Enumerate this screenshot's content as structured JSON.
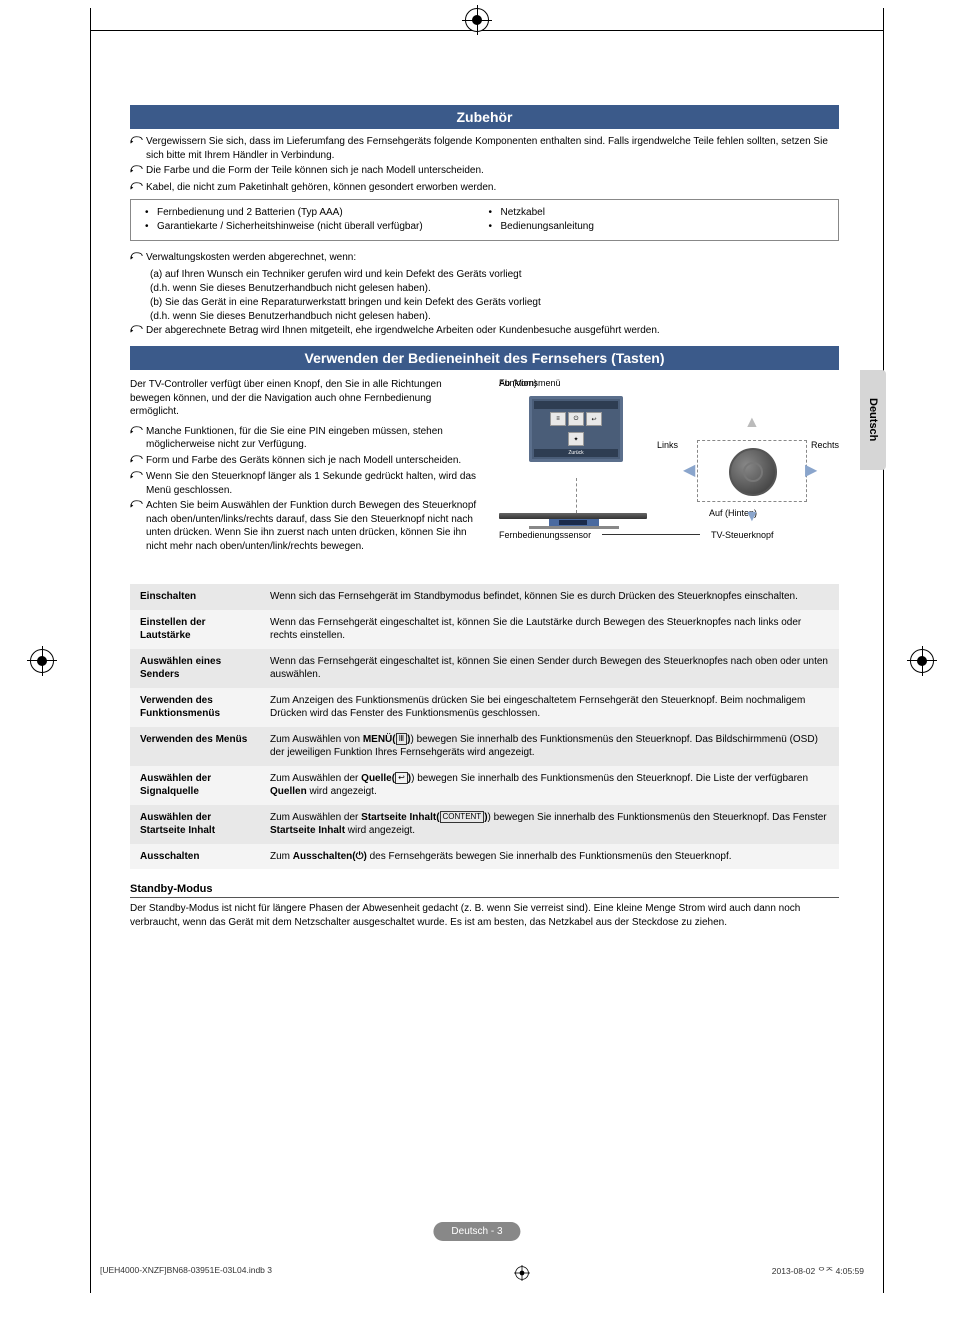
{
  "language_tab": "Deutsch",
  "sections": {
    "s1_title": "Zubehör",
    "s2_title": "Verwenden der Bedieneinheit des Fernsehers (Tasten)"
  },
  "accessories_notes": {
    "n1": "Vergewissern Sie sich, dass im Lieferumfang des Fernsehgeräts folgende Komponenten enthalten sind. Falls irgendwelche Teile fehlen sollten, setzen Sie sich bitte mit Ihrem Händler in Verbindung.",
    "n2": "Die Farbe und die Form der Teile können sich je nach Modell unterscheiden.",
    "n3": "Kabel, die nicht zum Paketinhalt gehören, können gesondert erworben werden."
  },
  "accessories_items": {
    "left1": "Fernbedienung und 2 Batterien (Typ AAA)",
    "left2": "Garantiekarte / Sicherheitshinweise (nicht überall verfügbar)",
    "right1": "Netzkabel",
    "right2": "Bedienungsanleitung"
  },
  "admin_costs": {
    "intro": "Verwaltungskosten werden abgerechnet, wenn:",
    "a": "(a) auf Ihren Wunsch ein Techniker gerufen wird und kein Defekt des Geräts vorliegt",
    "a_sub": "(d.h. wenn Sie dieses Benutzerhandbuch nicht gelesen haben).",
    "b": "(b) Sie das Gerät in eine Reparaturwerkstatt bringen und kein Defekt des Geräts vorliegt",
    "b_sub": "(d.h. wenn Sie dieses Benutzerhandbuch nicht gelesen haben).",
    "outro": "Der abgerechnete Betrag wird Ihnen mitgeteilt, ehe irgendwelche Arbeiten oder Kundenbesuche ausgeführt werden."
  },
  "controller_intro": "Der TV-Controller verfügt über einen Knopf, den Sie in alle Richtungen bewegen können, und der die Navigation auch ohne Fernbedienung ermöglicht.",
  "controller_notes": {
    "c1": "Manche Funktionen, für die Sie eine PIN eingeben müssen, stehen möglicherweise nicht zur Verfügung.",
    "c2": "Form und Farbe des Geräts können sich je nach Modell unterscheiden.",
    "c3": "Wenn Sie den Steuerknopf länger als 1 Sekunde gedrückt halten, wird das Menü geschlossen.",
    "c4": "Achten Sie beim Auswählen der Funktion durch Bewegen des Steuerknopf nach oben/unten/links/rechts darauf, dass Sie den Steuerknopf nicht nach unten drücken. Wenn Sie ihn zuerst nach unten drücken, können Sie ihn nicht mehr nach oben/unten/link/rechts bewegen."
  },
  "diagram_labels": {
    "funktionsmenu": "Funktionsmenü",
    "ab_vorn": "Ab (Vorn)",
    "links": "Links",
    "rechts": "Rechts",
    "auf_hinten": "Auf (Hinten)",
    "tv_knopf": "TV-Steuerknopf",
    "sensor": "Fernbedienungssensor",
    "zuruck": "Zurück"
  },
  "func_table": [
    {
      "label": "Einschalten",
      "desc": "Wenn sich das Fernsehgerät im Standbymodus befindet, können Sie es durch Drücken des Steuerknopfes einschalten."
    },
    {
      "label": "Einstellen der Lautstärke",
      "desc": "Wenn das Fernsehgerät eingeschaltet ist, können Sie die Lautstärke durch Bewegen des Steuerknopfes nach links oder rechts einstellen."
    },
    {
      "label": "Auswählen eines Senders",
      "desc": "Wenn das Fernsehgerät eingeschaltet ist, können Sie einen Sender durch Bewegen des Steuerknopfes nach oben oder unten auswählen."
    },
    {
      "label": "Verwenden des Funktionsmenüs",
      "desc": "Zum Anzeigen des Funktionsmenüs drücken Sie bei eingeschaltetem Fernsehgerät den Steuerknopf. Beim nochmaligem Drücken wird das Fenster des Funktionsmenüs geschlossen."
    },
    {
      "label": "Verwenden des Menüs",
      "desc_pre": "Zum Auswählen von ",
      "desc_bold": "MENÜ(",
      "desc_icon": "Ⅲ",
      "desc_after": ") bewegen Sie innerhalb des Funktionsmenüs den Steuerknopf. Das Bildschirmmenü (OSD) der jeweiligen Funktion Ihres Fernsehgeräts wird angezeigt."
    },
    {
      "label": "Auswählen der Signalquelle",
      "desc_pre": "Zum Auswählen der ",
      "desc_bold": "Quelle(",
      "desc_icon": "↩",
      "desc_after": ") bewegen Sie innerhalb des Funktionsmenüs den Steuerknopf. Die Liste der verfügbaren ",
      "desc_bold2": "Quellen",
      "desc_end": " wird angezeigt."
    },
    {
      "label": "Auswählen der Startseite Inhalt",
      "desc_pre": "Zum Auswählen der ",
      "desc_bold": "Startseite Inhalt(",
      "desc_icon": "CONTENT",
      "desc_after": ") bewegen Sie innerhalb des Funktionsmenüs den Steuerknopf. Das Fenster ",
      "desc_bold2": "Startseite Inhalt",
      "desc_end": " wird angezeigt."
    },
    {
      "label": "Ausschalten",
      "desc_pre": "Zum ",
      "desc_bold": "Ausschalten(⏻)",
      "desc_after": " des Fernsehgeräts bewegen Sie innerhalb des Funktionsmenüs den Steuerknopf."
    }
  ],
  "standby": {
    "heading": "Standby-Modus",
    "body": "Der Standby-Modus ist nicht für längere Phasen der Abwesenheit gedacht (z. B. wenn Sie verreist sind). Eine kleine Menge Strom wird auch dann noch verbraucht, wenn das Gerät mit dem Netzschalter ausgeschaltet wurde. Es ist am besten, das Netzkabel aus der Steckdose zu ziehen."
  },
  "page_footer": "Deutsch - 3",
  "print_footer": {
    "left": "[UEH4000-XNZF]BN68-03951E-03L04.indb   3",
    "right": "2013-08-02   ᄋᄌ 4:05:59"
  }
}
